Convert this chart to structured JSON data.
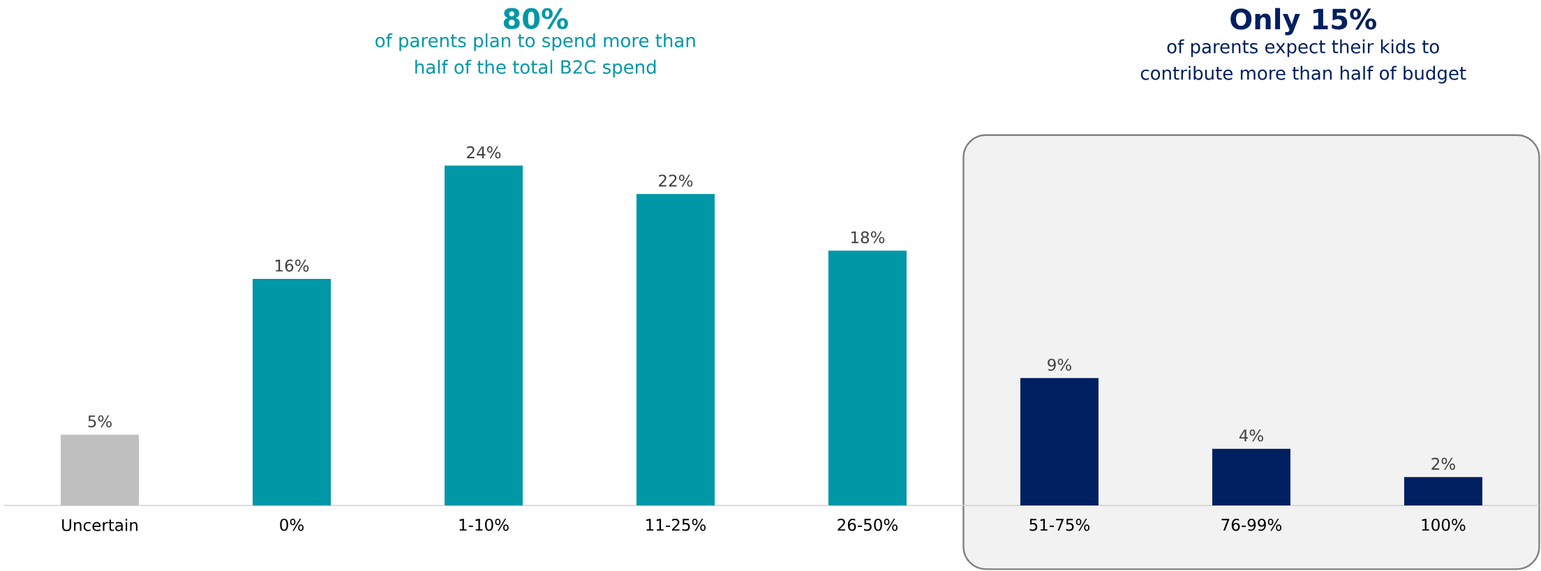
{
  "chart_data": {
    "type": "bar",
    "categories": [
      "Uncertain",
      "0%",
      "1-10%",
      "11-25%",
      "26-50%",
      "51-75%",
      "76-99%",
      "100%"
    ],
    "values": [
      5,
      16,
      24,
      22,
      18,
      9,
      4,
      2
    ],
    "colors": [
      "#bfbfbf",
      "#0097a7",
      "#0097a7",
      "#0097a7",
      "#0097a7",
      "#002060",
      "#002060",
      "#002060"
    ],
    "value_labels": [
      "5%",
      "16%",
      "24%",
      "22%",
      "18%",
      "9%",
      "4%",
      "2%"
    ],
    "tick_labels": "x",
    "annotations": [
      "**80%**",
      "of parents plan to spend more than half of the total B2C spend",
      "**Only 15%**",
      "of parents expect their kids to contribute more than half of budget"
    ],
    "bands": [
      {
        "axis": "x",
        "from": "51-75%",
        "to": "100%",
        "color": "#f2f2f2"
      }
    ]
  }
}
